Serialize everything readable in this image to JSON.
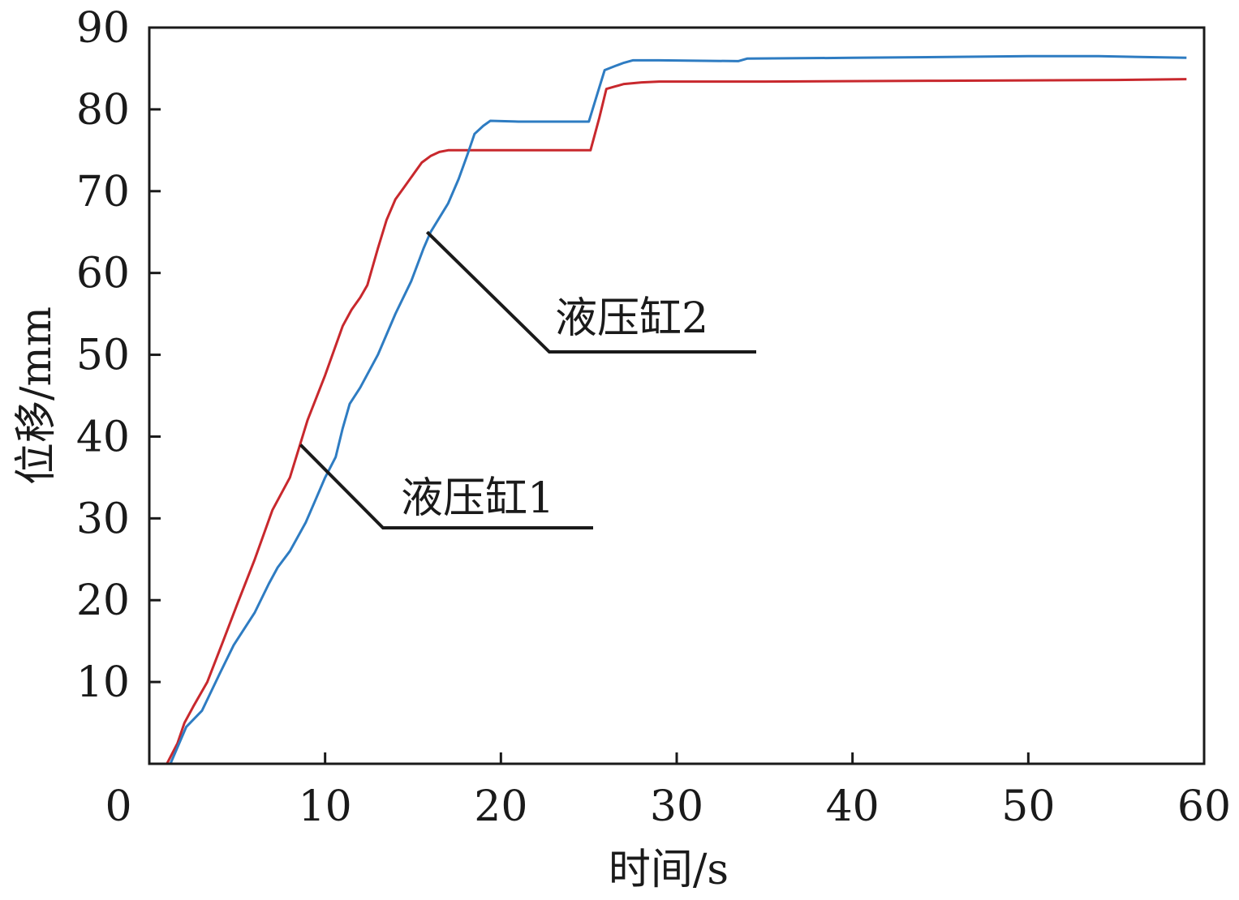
{
  "chart_data": {
    "type": "line",
    "xlabel": "时间/s",
    "ylabel": "位移/mm",
    "xlim": [
      0,
      60
    ],
    "ylim": [
      0,
      90
    ],
    "xticks": [
      0,
      10,
      20,
      30,
      40,
      50,
      60
    ],
    "yticks": [
      10,
      20,
      30,
      40,
      50,
      60,
      70,
      80,
      90
    ],
    "x_tick_labels": [
      "0",
      "10",
      "20",
      "30",
      "40",
      "50",
      "60"
    ],
    "y_tick_labels": [
      "10",
      "20",
      "30",
      "40",
      "50",
      "60",
      "70",
      "80",
      "90"
    ],
    "grid": false,
    "series": [
      {
        "name": "液压缸1",
        "color": "#c8282d",
        "points": [
          [
            0,
            0
          ],
          [
            1,
            0
          ],
          [
            1.6,
            2.5
          ],
          [
            2,
            5
          ],
          [
            2.5,
            7
          ],
          [
            3.3,
            10
          ],
          [
            4.2,
            15
          ],
          [
            5,
            19.5
          ],
          [
            6,
            25
          ],
          [
            7,
            31
          ],
          [
            8,
            35
          ],
          [
            8.5,
            38.5
          ],
          [
            9,
            42
          ],
          [
            10,
            47.5
          ],
          [
            11,
            53.5
          ],
          [
            11.5,
            55.5
          ],
          [
            12,
            57
          ],
          [
            12.4,
            58.5
          ],
          [
            13,
            63
          ],
          [
            13.5,
            66.5
          ],
          [
            14,
            69
          ],
          [
            14.5,
            70.5
          ],
          [
            15,
            72
          ],
          [
            15.5,
            73.5
          ],
          [
            16,
            74.3
          ],
          [
            16.5,
            74.8
          ],
          [
            17,
            75
          ],
          [
            18,
            75
          ],
          [
            20,
            75
          ],
          [
            22,
            75
          ],
          [
            24,
            75
          ],
          [
            25.1,
            75
          ],
          [
            25.6,
            79
          ],
          [
            26,
            82.5
          ],
          [
            26.5,
            82.8
          ],
          [
            27,
            83.1
          ],
          [
            28,
            83.3
          ],
          [
            29,
            83.4
          ],
          [
            35,
            83.4
          ],
          [
            45,
            83.5
          ],
          [
            55,
            83.6
          ],
          [
            59,
            83.7
          ]
        ]
      },
      {
        "name": "液压缸2",
        "color": "#2e7cc2",
        "points": [
          [
            0,
            0
          ],
          [
            1.2,
            0
          ],
          [
            1.6,
            2
          ],
          [
            2.1,
            4.5
          ],
          [
            3,
            6.5
          ],
          [
            4,
            11
          ],
          [
            4.8,
            14.5
          ],
          [
            6,
            18.5
          ],
          [
            6.8,
            22
          ],
          [
            7.3,
            24
          ],
          [
            8,
            26
          ],
          [
            8.9,
            29.5
          ],
          [
            9.4,
            32
          ],
          [
            10,
            35
          ],
          [
            10.6,
            37.5
          ],
          [
            11,
            41
          ],
          [
            11.4,
            44
          ],
          [
            12,
            46
          ],
          [
            13,
            50
          ],
          [
            14,
            55
          ],
          [
            14.9,
            59
          ],
          [
            15.6,
            63
          ],
          [
            16,
            65
          ],
          [
            17,
            68.5
          ],
          [
            17.6,
            71.5
          ],
          [
            18.1,
            74.5
          ],
          [
            18.5,
            77
          ],
          [
            19,
            78
          ],
          [
            19.4,
            78.6
          ],
          [
            21,
            78.5
          ],
          [
            25,
            78.5
          ],
          [
            25.5,
            82
          ],
          [
            25.9,
            84.8
          ],
          [
            26.5,
            85.3
          ],
          [
            27,
            85.7
          ],
          [
            27.5,
            86
          ],
          [
            29,
            86
          ],
          [
            33.5,
            85.9
          ],
          [
            34,
            86.2
          ],
          [
            40,
            86.3
          ],
          [
            50,
            86.5
          ],
          [
            54,
            86.5
          ],
          [
            59,
            86.3
          ]
        ]
      }
    ],
    "annotations": [
      {
        "text": "液压缸1",
        "series": "液压缸1"
      },
      {
        "text": "液压缸2",
        "series": "液压缸2"
      }
    ]
  }
}
